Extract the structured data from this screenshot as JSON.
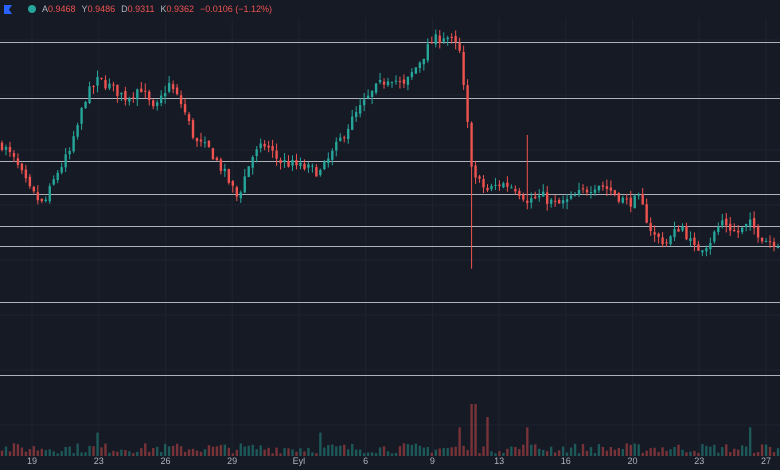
{
  "legend": {
    "open_label": "A",
    "open": "0.9468",
    "high_label": "Y",
    "high": "0.9486",
    "low_label": "D",
    "low": "0.9311",
    "close_label": "K",
    "close": "0.9362",
    "change": "−0.0106 (−1.12%)",
    "status_color": "#26a69a"
  },
  "colors": {
    "background": "#161a25",
    "up": "#26a69a",
    "down": "#ef5350",
    "level_line": "#c9ccd3",
    "grid": "#1f2330",
    "axis_text": "#b2b5be"
  },
  "chart_data": {
    "type": "candlestick",
    "x_tick_labels": [
      "19",
      "23",
      "26",
      "29",
      "Eyl",
      "6",
      "9",
      "13",
      "16",
      "20",
      "23",
      "27"
    ],
    "series": [
      {
        "type": "candlestick",
        "close_path": [
          [
            0,
            1.015
          ],
          [
            2,
            1.005
          ],
          [
            4,
            0.99
          ],
          [
            6,
            0.982
          ],
          [
            8,
            1.0
          ],
          [
            10,
            1.012
          ],
          [
            12,
            1.04
          ],
          [
            14,
            1.05
          ],
          [
            16,
            1.045
          ],
          [
            18,
            1.04
          ],
          [
            20,
            1.046
          ],
          [
            22,
            1.032
          ],
          [
            24,
            1.048
          ],
          [
            26,
            1.036
          ],
          [
            28,
            1.016
          ],
          [
            30,
            1.012
          ],
          [
            32,
            1.0
          ],
          [
            34,
            0.986
          ],
          [
            36,
            1.008
          ],
          [
            38,
            1.015
          ],
          [
            40,
            1.006
          ],
          [
            42,
            1.004
          ],
          [
            44,
            1.002
          ],
          [
            46,
            1.0
          ],
          [
            48,
            1.012
          ],
          [
            50,
            1.025
          ],
          [
            52,
            1.036
          ],
          [
            54,
            1.045
          ],
          [
            56,
            1.052
          ],
          [
            58,
            1.046
          ],
          [
            60,
            1.058
          ],
          [
            62,
            1.07
          ],
          [
            64,
            1.074
          ],
          [
            66,
            1.066
          ],
          [
            68,
            0.998
          ],
          [
            70,
            0.99
          ],
          [
            72,
            0.994
          ],
          [
            74,
            0.992
          ],
          [
            76,
            0.985
          ],
          [
            78,
            0.987
          ],
          [
            80,
            0.982
          ],
          [
            82,
            0.985
          ],
          [
            84,
            0.99
          ],
          [
            86,
            0.994
          ],
          [
            88,
            0.99
          ],
          [
            90,
            0.984
          ],
          [
            92,
            0.985
          ],
          [
            94,
            0.966
          ],
          [
            96,
            0.962
          ],
          [
            98,
            0.972
          ],
          [
            100,
            0.958
          ],
          [
            102,
            0.962
          ],
          [
            104,
            0.974
          ],
          [
            106,
            0.967
          ],
          [
            108,
            0.972
          ],
          [
            110,
            0.964
          ],
          [
            112,
            0.962
          ]
        ],
        "spikes": [
          {
            "x": 68,
            "low": 0.948,
            "high": 1.002
          },
          {
            "x": 76,
            "low": 0.98,
            "high": 1.02
          }
        ]
      },
      {
        "type": "volume",
        "emphasis": [
          {
            "x": 14,
            "rel": 0.45
          },
          {
            "x": 46,
            "rel": 0.45
          },
          {
            "x": 66,
            "rel": 0.55
          },
          {
            "x": 68,
            "rel": 1.0
          },
          {
            "x": 70,
            "rel": 0.75
          },
          {
            "x": 76,
            "rel": 0.55
          },
          {
            "x": 108,
            "rel": 0.55
          }
        ]
      }
    ],
    "horizontal_levels": [
      1.07,
      1.04,
      1.006,
      0.988,
      0.971,
      0.96,
      0.93,
      0.891
    ],
    "ylim": [
      0.88,
      1.083
    ],
    "xlim": [
      0,
      112
    ],
    "grid": true
  }
}
